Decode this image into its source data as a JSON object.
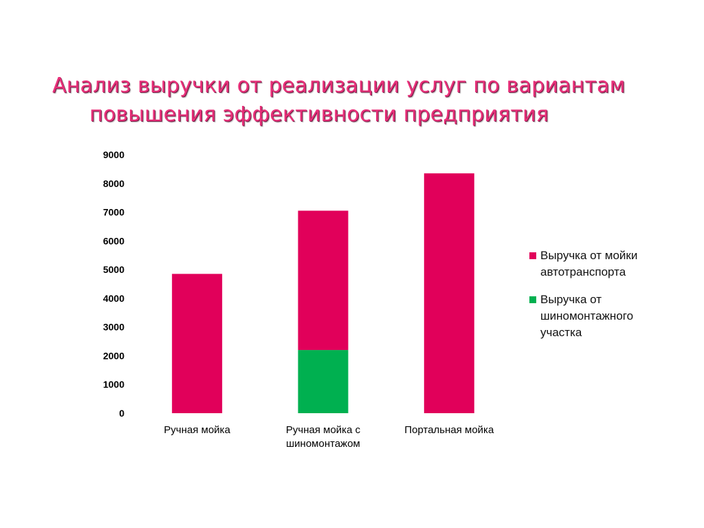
{
  "title_line1": "Анализ выручки от реализации услуг по вариантам",
  "title_line2": "повышения эффективности предприятия",
  "chart_data": {
    "type": "bar",
    "stacked": true,
    "categories": [
      "Ручная мойка",
      "Ручная мойка с шиномонтажом",
      "Портальная мойка"
    ],
    "category_lines": [
      [
        "Ручная мойка"
      ],
      [
        "Ручная мойка с",
        "шиномонтажом"
      ],
      [
        "Портальная мойка"
      ]
    ],
    "series": [
      {
        "name": "Выручка от шиномонтажного участка",
        "color": "#00b050",
        "values": [
          0,
          2200,
          0
        ]
      },
      {
        "name": "Выручка от мойки автотранспорта",
        "color": "#e1005a",
        "values": [
          4850,
          4850,
          8350
        ]
      }
    ],
    "ylim": [
      0,
      9000
    ],
    "yticks": [
      0,
      1000,
      2000,
      3000,
      4000,
      5000,
      6000,
      7000,
      8000,
      9000
    ],
    "grid": false,
    "legend": "right"
  },
  "legend": [
    {
      "color": "#e1005a",
      "line1": "Выручка от мойки",
      "line2": "автотранспорта",
      "line3": ""
    },
    {
      "color": "#00b050",
      "line1": "Выручка от",
      "line2": "шиномонтажного",
      "line3": "участка"
    }
  ]
}
